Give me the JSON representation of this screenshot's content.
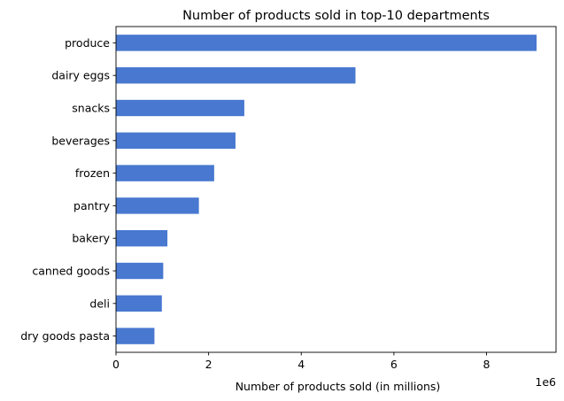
{
  "chart_data": {
    "type": "bar",
    "orientation": "horizontal",
    "title": "Number of products sold in top-10 departments",
    "xlabel": "Number of products sold (in millions)",
    "ylabel": "",
    "x_offset_text": "1e6",
    "xlim": [
      0,
      9500000
    ],
    "x_ticks": [
      0,
      2000000,
      4000000,
      6000000,
      8000000
    ],
    "x_tick_labels": [
      "0",
      "2",
      "4",
      "6",
      "8"
    ],
    "grid": false,
    "bar_color": "#4878d0",
    "categories": [
      "produce",
      "dairy eggs",
      "snacks",
      "beverages",
      "frozen",
      "pantry",
      "bakery",
      "canned goods",
      "deli",
      "dry goods pasta"
    ],
    "values": [
      9080000,
      5170000,
      2770000,
      2580000,
      2120000,
      1790000,
      1110000,
      1020000,
      990000,
      830000
    ]
  }
}
